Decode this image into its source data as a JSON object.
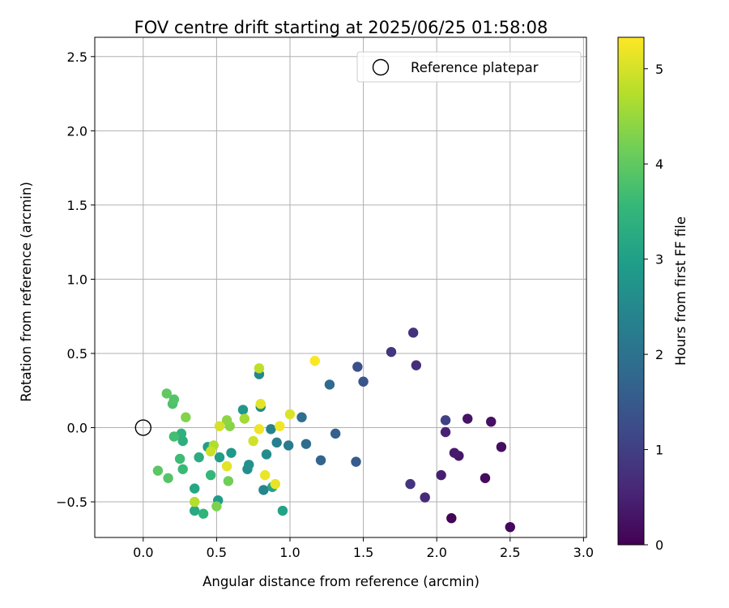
{
  "chart_data": {
    "type": "scatter",
    "title": "FOV centre drift starting at 2025/06/25 01:58:08",
    "xlabel": "Angular distance from reference (arcmin)",
    "ylabel": "Rotation from reference (arcmin)",
    "xlim": [
      -0.33,
      3.02
    ],
    "ylim": [
      -0.74,
      2.63
    ],
    "xticks": [
      0.0,
      0.5,
      1.0,
      1.5,
      2.0,
      2.5,
      3.0
    ],
    "xtick_labels": [
      "0.0",
      "0.5",
      "1.0",
      "1.5",
      "2.0",
      "2.5",
      "3.0"
    ],
    "yticks": [
      -0.5,
      0.0,
      0.5,
      1.0,
      1.5,
      2.0,
      2.5
    ],
    "ytick_labels": [
      "−0.5",
      "0.0",
      "0.5",
      "1.0",
      "1.5",
      "2.0",
      "2.5"
    ],
    "grid": true,
    "legend": {
      "placement": "top-right",
      "entries": [
        "Reference platepar"
      ]
    },
    "reference_point": {
      "x": 0.0,
      "y": 0.0
    },
    "colorbar": {
      "label": "Hours from first FF file",
      "min": 0,
      "max": 5.33,
      "ticks": [
        0,
        1,
        2,
        3,
        4,
        5
      ],
      "tick_labels": [
        "0",
        "1",
        "2",
        "3",
        "4",
        "5"
      ],
      "colormap": "viridis"
    },
    "colormap_stops": [
      "#440154",
      "#482878",
      "#3e4989",
      "#31688e",
      "#26828e",
      "#1f9e89",
      "#35b779",
      "#6ece58",
      "#b5de2b",
      "#fde725"
    ],
    "points": [
      {
        "x": 2.1,
        "y": -0.61,
        "h": 0.05
      },
      {
        "x": 2.5,
        "y": -0.67,
        "h": 0.1
      },
      {
        "x": 2.33,
        "y": -0.34,
        "h": 0.15
      },
      {
        "x": 2.44,
        "y": -0.13,
        "h": 0.2
      },
      {
        "x": 2.37,
        "y": 0.04,
        "h": 0.25
      },
      {
        "x": 2.21,
        "y": 0.06,
        "h": 0.28
      },
      {
        "x": 2.15,
        "y": -0.19,
        "h": 0.33
      },
      {
        "x": 2.12,
        "y": -0.17,
        "h": 0.38
      },
      {
        "x": 2.03,
        "y": -0.32,
        "h": 0.45
      },
      {
        "x": 2.06,
        "y": -0.03,
        "h": 0.52
      },
      {
        "x": 1.92,
        "y": -0.47,
        "h": 0.62
      },
      {
        "x": 1.86,
        "y": 0.42,
        "h": 0.7
      },
      {
        "x": 1.84,
        "y": 0.64,
        "h": 0.75
      },
      {
        "x": 1.82,
        "y": -0.38,
        "h": 0.8
      },
      {
        "x": 1.69,
        "y": 0.51,
        "h": 0.82
      },
      {
        "x": 2.06,
        "y": 0.05,
        "h": 1.05
      },
      {
        "x": 1.46,
        "y": 0.41,
        "h": 1.3
      },
      {
        "x": 1.5,
        "y": 0.31,
        "h": 1.42
      },
      {
        "x": 1.45,
        "y": -0.23,
        "h": 1.52
      },
      {
        "x": 1.31,
        "y": -0.04,
        "h": 1.62
      },
      {
        "x": 1.21,
        "y": -0.22,
        "h": 1.72
      },
      {
        "x": 1.27,
        "y": 0.29,
        "h": 1.82
      },
      {
        "x": 1.11,
        "y": -0.11,
        "h": 1.87
      },
      {
        "x": 1.08,
        "y": 0.07,
        "h": 1.92
      },
      {
        "x": 0.99,
        "y": -0.12,
        "h": 2.22
      },
      {
        "x": 0.91,
        "y": -0.1,
        "h": 2.32
      },
      {
        "x": 0.87,
        "y": -0.01,
        "h": 2.4
      },
      {
        "x": 0.82,
        "y": -0.42,
        "h": 2.45
      },
      {
        "x": 0.79,
        "y": 0.36,
        "h": 2.5
      },
      {
        "x": 0.8,
        "y": 0.14,
        "h": 2.55
      },
      {
        "x": 0.84,
        "y": -0.18,
        "h": 2.6
      },
      {
        "x": 0.71,
        "y": -0.28,
        "h": 2.65
      },
      {
        "x": 0.72,
        "y": -0.25,
        "h": 2.7
      },
      {
        "x": 0.68,
        "y": 0.12,
        "h": 2.8
      },
      {
        "x": 0.6,
        "y": -0.17,
        "h": 2.85
      },
      {
        "x": 0.51,
        "y": -0.49,
        "h": 2.9
      },
      {
        "x": 0.52,
        "y": -0.2,
        "h": 2.95
      },
      {
        "x": 0.44,
        "y": -0.13,
        "h": 3.0
      },
      {
        "x": 0.95,
        "y": -0.56,
        "h": 3.05
      },
      {
        "x": 0.88,
        "y": -0.4,
        "h": 3.1
      },
      {
        "x": 0.35,
        "y": -0.41,
        "h": 3.15
      },
      {
        "x": 0.35,
        "y": -0.56,
        "h": 3.2
      },
      {
        "x": 0.38,
        "y": -0.2,
        "h": 3.3
      },
      {
        "x": 0.27,
        "y": -0.09,
        "h": 3.35
      },
      {
        "x": 0.26,
        "y": -0.04,
        "h": 3.4
      },
      {
        "x": 0.41,
        "y": -0.58,
        "h": 3.45
      },
      {
        "x": 0.46,
        "y": -0.32,
        "h": 3.55
      },
      {
        "x": 0.27,
        "y": -0.28,
        "h": 3.6
      },
      {
        "x": 0.25,
        "y": -0.21,
        "h": 3.65
      },
      {
        "x": 0.21,
        "y": -0.06,
        "h": 3.7
      },
      {
        "x": 0.2,
        "y": 0.16,
        "h": 3.8
      },
      {
        "x": 0.21,
        "y": 0.19,
        "h": 3.85
      },
      {
        "x": 0.17,
        "y": -0.34,
        "h": 3.9
      },
      {
        "x": 0.1,
        "y": -0.29,
        "h": 3.95
      },
      {
        "x": 0.16,
        "y": 0.23,
        "h": 4.0
      },
      {
        "x": 0.58,
        "y": -0.36,
        "h": 4.15
      },
      {
        "x": 0.5,
        "y": -0.53,
        "h": 4.25
      },
      {
        "x": 0.29,
        "y": 0.07,
        "h": 4.3
      },
      {
        "x": 0.59,
        "y": 0.01,
        "h": 4.35
      },
      {
        "x": 0.57,
        "y": 0.05,
        "h": 4.4
      },
      {
        "x": 0.69,
        "y": 0.06,
        "h": 4.6
      },
      {
        "x": 0.48,
        "y": -0.12,
        "h": 4.7
      },
      {
        "x": 0.35,
        "y": -0.5,
        "h": 4.75
      },
      {
        "x": 0.79,
        "y": 0.4,
        "h": 4.8
      },
      {
        "x": 0.46,
        "y": -0.16,
        "h": 4.9
      },
      {
        "x": 0.75,
        "y": -0.09,
        "h": 4.95
      },
      {
        "x": 0.52,
        "y": 0.01,
        "h": 5.0
      },
      {
        "x": 1.0,
        "y": 0.09,
        "h": 5.05
      },
      {
        "x": 0.57,
        "y": -0.26,
        "h": 5.1
      },
      {
        "x": 0.8,
        "y": 0.16,
        "h": 5.12
      },
      {
        "x": 0.9,
        "y": -0.38,
        "h": 5.15
      },
      {
        "x": 0.83,
        "y": -0.32,
        "h": 5.18
      },
      {
        "x": 0.79,
        "y": -0.01,
        "h": 5.2
      },
      {
        "x": 0.93,
        "y": 0.01,
        "h": 5.22
      },
      {
        "x": 1.17,
        "y": 0.45,
        "h": 5.3
      }
    ]
  }
}
